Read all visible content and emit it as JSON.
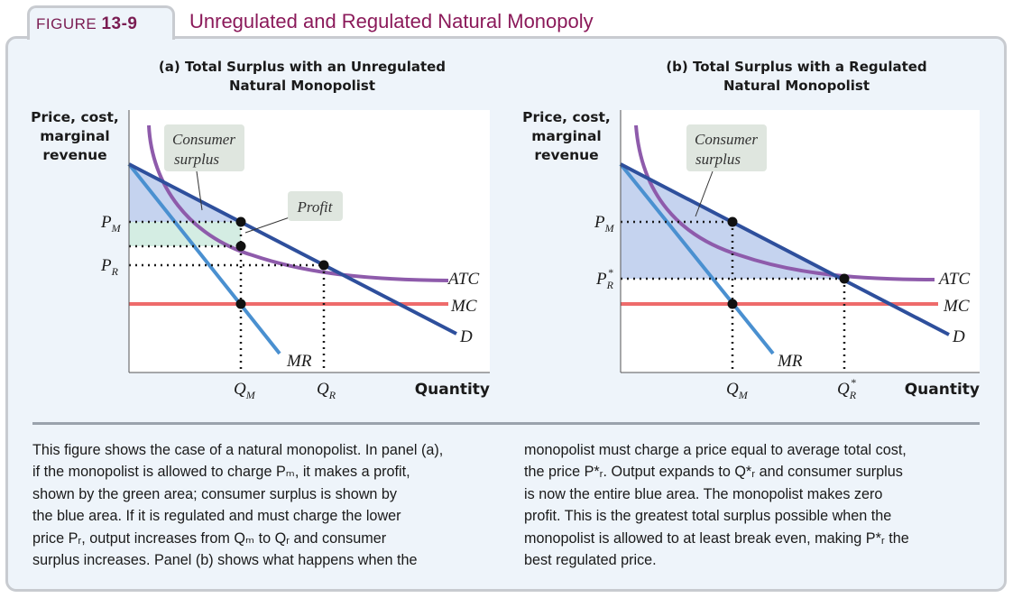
{
  "figure": {
    "label_prefix": "FIGURE",
    "label_number": "13-9",
    "title": "Unregulated and Regulated Natural Monopoly"
  },
  "panel_a": {
    "title_line1": "(a) Total Surplus with an Unregulated",
    "title_line2": "Natural Monopolist",
    "ylabel_line1": "Price, cost,",
    "ylabel_line2": "marginal",
    "ylabel_line3": "revenue",
    "xlabel": "Quantity",
    "callout_consumer_1": "Consumer",
    "callout_consumer_2": "surplus",
    "callout_profit": "Profit",
    "curve_atc": "ATC",
    "curve_mc": "MC",
    "curve_d": "D",
    "curve_mr": "MR",
    "p_m": "P",
    "p_m_sub": "M",
    "p_r": "P",
    "p_r_sub": "R",
    "q_m": "Q",
    "q_m_sub": "M",
    "q_r": "Q",
    "q_r_sub": "R"
  },
  "panel_b": {
    "title_line1": "(b) Total Surplus with a Regulated",
    "title_line2": "Natural Monopolist",
    "ylabel_line1": "Price, cost,",
    "ylabel_line2": "marginal",
    "ylabel_line3": "revenue",
    "xlabel": "Quantity",
    "callout_consumer_1": "Consumer",
    "callout_consumer_2": "surplus",
    "curve_atc": "ATC",
    "curve_mc": "MC",
    "curve_d": "D",
    "curve_mr": "MR",
    "p_m": "P",
    "p_m_sub": "M",
    "p_r": "P",
    "p_r_sup": "*",
    "p_r_sub": "R",
    "q_m": "Q",
    "q_m_sub": "M",
    "q_r": "Q",
    "q_r_sup": "*",
    "q_r_sub": "R"
  },
  "caption_left": [
    "This figure shows the case of a natural monopolist. In panel (a),",
    "if the monopolist is allowed to charge Pₘ, it makes a profit,",
    "shown by the green area; consumer surplus is shown by",
    "the blue area. If it is regulated and must charge the lower",
    "price Pᵣ, output increases from Qₘ to Qᵣ and consumer",
    "surplus increases. Panel (b) shows what happens when the"
  ],
  "caption_right": [
    "monopolist must charge a price equal to average total cost,",
    "the price P*ᵣ. Output expands to Q*ᵣ and consumer surplus",
    "is now the entire blue area. The monopolist makes zero",
    "profit. This is the greatest total surplus possible when the",
    "monopolist is allowed to at least break even, making P*ᵣ the",
    "best regulated price."
  ],
  "colors": {
    "demand": "#2e4f9c",
    "mr": "#4a90d0",
    "atc": "#8e5bab",
    "mc": "#ee6b6b",
    "consumer_surplus": "#c5d3ef",
    "profit": "#d4ede3",
    "callout_box": "#dfe6df",
    "title": "#8b1a5a"
  }
}
